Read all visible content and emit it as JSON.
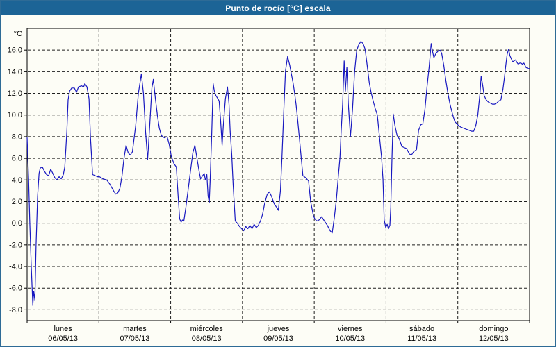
{
  "title": "Punto de rocío [°C] escala",
  "colors": {
    "titlebar": "#1c6496",
    "window_border": "#2e6b96",
    "background": "#fdfdf6",
    "grid": "#1f1f1f",
    "line": "#1818c0"
  },
  "chart_data": {
    "type": "line",
    "title": "Punto de rocío [°C] escala",
    "ylabel": "°C",
    "xlabel": "",
    "legend": "none",
    "grid": "dashed",
    "ylim": [
      -9,
      18
    ],
    "xlim_hours": [
      0,
      168
    ],
    "y_tick_values": [
      16,
      14,
      12,
      10,
      8,
      6,
      4,
      2,
      0,
      -2,
      -4,
      -6,
      -8
    ],
    "y_tick_labels": [
      "16,0",
      "14,0",
      "12,0",
      "10,0",
      "8,0",
      "6,0",
      "4,0",
      "2,0",
      "0,0",
      "-2,0",
      "-4,0",
      "-6,0",
      "-8,0"
    ],
    "x_days": [
      {
        "name": "lunes",
        "date": "06/05/13"
      },
      {
        "name": "martes",
        "date": "07/05/13"
      },
      {
        "name": "miércoles",
        "date": "08/05/13"
      },
      {
        "name": "jueves",
        "date": "09/05/13"
      },
      {
        "name": "viernes",
        "date": "10/05/13"
      },
      {
        "name": "sábado",
        "date": "11/05/13"
      },
      {
        "name": "domingo",
        "date": "12/05/13"
      }
    ],
    "series": [
      {
        "name": "Punto de rocío",
        "unit": "°C",
        "x_unit": "hours from lunes 06/05/13 00:00",
        "points": [
          [
            0,
            7.9
          ],
          [
            0.5,
            4
          ],
          [
            0.9,
            0
          ],
          [
            1.4,
            -4
          ],
          [
            1.9,
            -7.6
          ],
          [
            2.2,
            -6.3
          ],
          [
            2.6,
            -7.1
          ],
          [
            3,
            -2
          ],
          [
            3.5,
            2.5
          ],
          [
            4,
            4.6
          ],
          [
            4.4,
            5.1
          ],
          [
            5.1,
            5.2
          ],
          [
            5.8,
            4.8
          ],
          [
            6.5,
            4.5
          ],
          [
            7.2,
            4.4
          ],
          [
            7.9,
            5
          ],
          [
            8.6,
            4.6
          ],
          [
            9.3,
            4.2
          ],
          [
            10,
            4
          ],
          [
            10.7,
            4.3
          ],
          [
            11.4,
            4.1
          ],
          [
            12.1,
            4.5
          ],
          [
            12.6,
            5.2
          ],
          [
            13.3,
            8.5
          ],
          [
            13.7,
            11.4
          ],
          [
            14.2,
            12.2
          ],
          [
            14.9,
            12.5
          ],
          [
            15.8,
            12.5
          ],
          [
            16.5,
            12.1
          ],
          [
            17.2,
            12.6
          ],
          [
            18.2,
            12.7
          ],
          [
            18.9,
            12.6
          ],
          [
            19.3,
            12.9
          ],
          [
            20,
            12.6
          ],
          [
            20.7,
            11.5
          ],
          [
            21.2,
            7.9
          ],
          [
            21.9,
            4.5
          ],
          [
            22.8,
            4.4
          ],
          [
            23.5,
            4.3
          ],
          [
            24.2,
            4.3
          ],
          [
            25.4,
            4.1
          ],
          [
            26.6,
            4
          ],
          [
            27.7,
            3.6
          ],
          [
            28.9,
            3
          ],
          [
            29.6,
            2.7
          ],
          [
            30.3,
            2.8
          ],
          [
            31,
            3.2
          ],
          [
            31.7,
            4.3
          ],
          [
            32.4,
            6
          ],
          [
            33.1,
            7.2
          ],
          [
            33.8,
            6.5
          ],
          [
            34.5,
            6.3
          ],
          [
            35.2,
            6.6
          ],
          [
            36.3,
            9
          ],
          [
            37.2,
            12
          ],
          [
            38.2,
            13.8
          ],
          [
            38.9,
            12
          ],
          [
            39.6,
            8.5
          ],
          [
            40.3,
            5.9
          ],
          [
            41,
            9
          ],
          [
            41.7,
            12.5
          ],
          [
            42.2,
            13.3
          ],
          [
            42.9,
            11.5
          ],
          [
            43.6,
            9.9
          ],
          [
            44.2,
            8.8
          ],
          [
            44.9,
            8.1
          ],
          [
            45.9,
            7.9
          ],
          [
            46.8,
            8
          ],
          [
            47.5,
            7.3
          ],
          [
            48.2,
            6.2
          ],
          [
            49.1,
            5.5
          ],
          [
            49.9,
            5.2
          ],
          [
            50.5,
            2.5
          ],
          [
            51,
            0.4
          ],
          [
            51.5,
            0.1
          ],
          [
            51.9,
            0.3
          ],
          [
            52.4,
            0.2
          ],
          [
            53.1,
            1.5
          ],
          [
            53.8,
            3
          ],
          [
            54.7,
            5
          ],
          [
            55.4,
            6.5
          ],
          [
            56.1,
            7.2
          ],
          [
            56.8,
            6
          ],
          [
            57.5,
            4.8
          ],
          [
            58,
            4.1
          ],
          [
            58.7,
            4.4
          ],
          [
            59.2,
            4.6
          ],
          [
            59.6,
            4
          ],
          [
            60.1,
            4.5
          ],
          [
            60.5,
            2.5
          ],
          [
            60.9,
            1.9
          ],
          [
            61.2,
            4
          ],
          [
            61.7,
            8
          ],
          [
            62.2,
            12.9
          ],
          [
            62.6,
            12.2
          ],
          [
            63.1,
            11.8
          ],
          [
            63.8,
            11.5
          ],
          [
            64.2,
            11.3
          ],
          [
            64.7,
            9.5
          ],
          [
            65.2,
            7.2
          ],
          [
            65.6,
            9
          ],
          [
            66.3,
            11.5
          ],
          [
            67,
            12.6
          ],
          [
            67.5,
            11
          ],
          [
            67.9,
            8.5
          ],
          [
            68.4,
            6.4
          ],
          [
            68.9,
            3.5
          ],
          [
            69.6,
            0.2
          ],
          [
            70.3,
            0
          ],
          [
            71,
            -0.3
          ],
          [
            71.7,
            -0.5
          ],
          [
            72.4,
            -0.7
          ],
          [
            73.1,
            -0.3
          ],
          [
            73.8,
            -0.5
          ],
          [
            74.5,
            -0.2
          ],
          [
            75.2,
            -0.5
          ],
          [
            75.9,
            -0.1
          ],
          [
            76.6,
            -0.4
          ],
          [
            77.3,
            -0.2
          ],
          [
            78,
            0.2
          ],
          [
            78.7,
            0.8
          ],
          [
            79.4,
            1.8
          ],
          [
            80.3,
            2.7
          ],
          [
            81,
            2.9
          ],
          [
            81.7,
            2.5
          ],
          [
            82.6,
            1.8
          ],
          [
            83.6,
            1.4
          ],
          [
            84,
            1.2
          ],
          [
            84.7,
            3
          ],
          [
            85.2,
            6.1
          ],
          [
            85.9,
            11
          ],
          [
            86.4,
            14.1
          ],
          [
            87.1,
            15.4
          ],
          [
            87.8,
            14.6
          ],
          [
            88.2,
            14
          ],
          [
            88.9,
            13
          ],
          [
            89.4,
            12.1
          ],
          [
            89.9,
            11
          ],
          [
            90.3,
            10
          ],
          [
            91,
            8
          ],
          [
            92.2,
            4.4
          ],
          [
            93.2,
            4.2
          ],
          [
            94.1,
            3.9
          ],
          [
            94.8,
            2
          ],
          [
            95.7,
            0.7
          ],
          [
            96.2,
            0.4
          ],
          [
            96.9,
            0.2
          ],
          [
            97.6,
            0.3
          ],
          [
            98.5,
            0.6
          ],
          [
            99.4,
            0.2
          ],
          [
            100.4,
            -0.2
          ],
          [
            101.3,
            -0.7
          ],
          [
            102,
            -0.9
          ],
          [
            102.7,
            0.5
          ],
          [
            103.4,
            2.2
          ],
          [
            104.1,
            4.5
          ],
          [
            104.6,
            6.1
          ],
          [
            105,
            8.5
          ],
          [
            105.5,
            11
          ],
          [
            106,
            15
          ],
          [
            106.4,
            12.2
          ],
          [
            106.9,
            14.4
          ],
          [
            107.4,
            11
          ],
          [
            108.1,
            8
          ],
          [
            108.8,
            10.5
          ],
          [
            109.5,
            14
          ],
          [
            110.2,
            16
          ],
          [
            110.9,
            16.5
          ],
          [
            111.6,
            16.8
          ],
          [
            112.3,
            16.6
          ],
          [
            113,
            16.1
          ],
          [
            113.7,
            14.6
          ],
          [
            114.4,
            13
          ],
          [
            115,
            12.1
          ],
          [
            115.7,
            11.3
          ],
          [
            116.4,
            10.6
          ],
          [
            117.1,
            10
          ],
          [
            117.8,
            8
          ],
          [
            118.5,
            6.1
          ],
          [
            119,
            4
          ],
          [
            119.4,
            0.3
          ],
          [
            119.9,
            -0.4
          ],
          [
            120.4,
            -0.1
          ],
          [
            120.8,
            -0.5
          ],
          [
            121.3,
            -0.2
          ],
          [
            121.6,
            1.5
          ],
          [
            122,
            6
          ],
          [
            122.4,
            10.1
          ],
          [
            123,
            9
          ],
          [
            123.7,
            8.1
          ],
          [
            124.4,
            7.8
          ],
          [
            125.3,
            7.1
          ],
          [
            126,
            7
          ],
          [
            126.9,
            6.9
          ],
          [
            127.8,
            6.4
          ],
          [
            128.5,
            6.3
          ],
          [
            129.2,
            6.6
          ],
          [
            130.2,
            6.8
          ],
          [
            130.9,
            8.6
          ],
          [
            131.6,
            9.1
          ],
          [
            132.3,
            9.2
          ],
          [
            133,
            10.5
          ],
          [
            133.7,
            12.6
          ],
          [
            134.4,
            14.4
          ],
          [
            135.1,
            16.6
          ],
          [
            135.6,
            15.8
          ],
          [
            136,
            15.3
          ],
          [
            136.7,
            15.7
          ],
          [
            137.4,
            15.9
          ],
          [
            138.1,
            16
          ],
          [
            138.6,
            15.7
          ],
          [
            139.3,
            14.6
          ],
          [
            140,
            13.2
          ],
          [
            140.7,
            12
          ],
          [
            141.4,
            11
          ],
          [
            142.3,
            10
          ],
          [
            143,
            9.4
          ],
          [
            144,
            9.1
          ],
          [
            144.9,
            8.9
          ],
          [
            145.8,
            8.8
          ],
          [
            146.7,
            8.7
          ],
          [
            147.7,
            8.6
          ],
          [
            148.6,
            8.5
          ],
          [
            149.3,
            8.5
          ],
          [
            150,
            9
          ],
          [
            150.7,
            10
          ],
          [
            151.4,
            12
          ],
          [
            151.8,
            13.6
          ],
          [
            152.3,
            12.8
          ],
          [
            152.8,
            11.8
          ],
          [
            153.5,
            11.4
          ],
          [
            154.2,
            11.2
          ],
          [
            154.9,
            11.1
          ],
          [
            155.6,
            11
          ],
          [
            156.3,
            11
          ],
          [
            157,
            11.1
          ],
          [
            157.7,
            11.3
          ],
          [
            158.4,
            11.4
          ],
          [
            159.1,
            12.4
          ],
          [
            159.6,
            13.5
          ],
          [
            160,
            14.5
          ],
          [
            160.5,
            15.6
          ],
          [
            161,
            16.1
          ],
          [
            161.4,
            15.5
          ],
          [
            161.9,
            15.2
          ],
          [
            162.3,
            14.9
          ],
          [
            162.8,
            15
          ],
          [
            163.3,
            15.1
          ],
          [
            163.7,
            14.9
          ],
          [
            164.2,
            14.7
          ],
          [
            164.7,
            14.8
          ],
          [
            165.1,
            14.8
          ],
          [
            165.6,
            14.7
          ],
          [
            166.1,
            14.8
          ],
          [
            166.8,
            14.4
          ],
          [
            167.5,
            14.3
          ],
          [
            167.9,
            14.3
          ]
        ]
      }
    ]
  }
}
